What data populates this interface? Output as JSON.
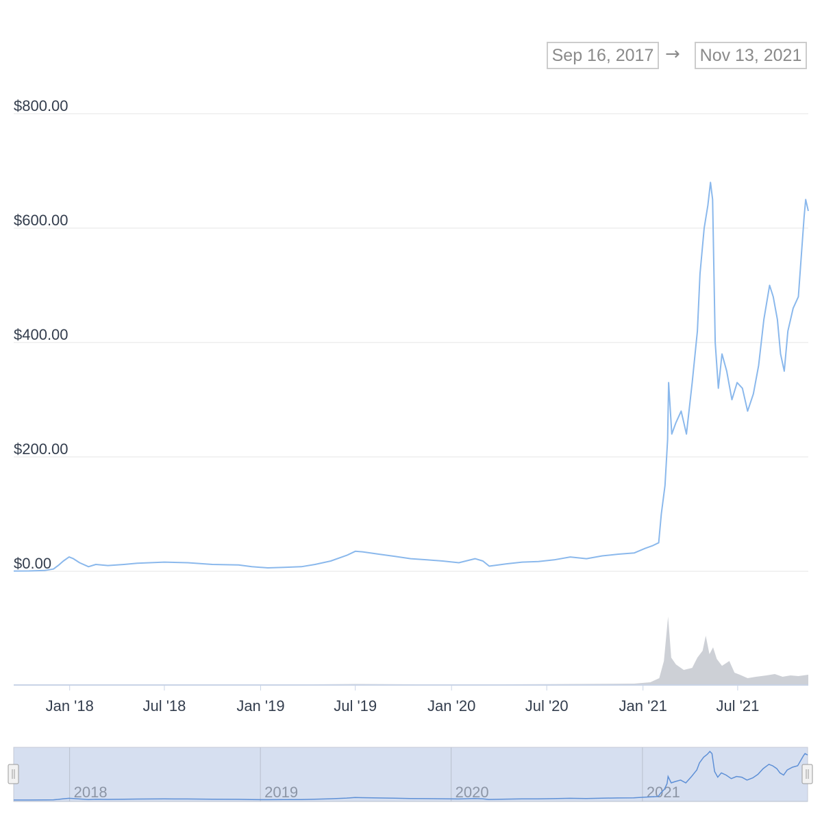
{
  "range_selector": {
    "from": "Sep 16, 2017",
    "arrow": "→",
    "to": "Nov 13, 2021"
  },
  "colors": {
    "price_line": "#8ab8ec",
    "volume": "#cdd0d6",
    "grid": "#e6e6e6",
    "navigator_fill": "#d6dff0",
    "navigator_line": "#5d8fd6"
  },
  "chart_data": {
    "type": "line",
    "title": "",
    "xlabel": "",
    "ylabel": "",
    "ylim": [
      0,
      800
    ],
    "y_ticks": [
      0,
      200,
      400,
      600,
      800
    ],
    "y_tick_labels": [
      "$0.00",
      "$200.00",
      "$400.00",
      "$600.00",
      "$800.00"
    ],
    "xlim": [
      "2017-09-16",
      "2021-11-13"
    ],
    "x_ticks": [
      "2018-01-01",
      "2018-07-01",
      "2019-01-01",
      "2019-07-01",
      "2020-01-01",
      "2020-07-01",
      "2021-01-01",
      "2021-07-01"
    ],
    "x_tick_labels": [
      "Jan '18",
      "Jul '18",
      "Jan '19",
      "Jul '19",
      "Jan '20",
      "Jul '20",
      "Jan '21",
      "Jul '21"
    ],
    "grid": true,
    "series": [
      {
        "values": [
          [
            "2017-09-16",
            0.5
          ],
          [
            "2017-10-15",
            0.6
          ],
          [
            "2017-11-15",
            1.5
          ],
          [
            "2017-12-01",
            4
          ],
          [
            "2017-12-10",
            10
          ],
          [
            "2017-12-20",
            18
          ],
          [
            "2017-12-31",
            25
          ],
          [
            "2018-01-08",
            22
          ],
          [
            "2018-01-20",
            15
          ],
          [
            "2018-02-06",
            8
          ],
          [
            "2018-02-20",
            12
          ],
          [
            "2018-03-15",
            10
          ],
          [
            "2018-04-15",
            12
          ],
          [
            "2018-05-10",
            14
          ],
          [
            "2018-07-01",
            16
          ],
          [
            "2018-08-15",
            15
          ],
          [
            "2018-10-01",
            12
          ],
          [
            "2018-11-20",
            11
          ],
          [
            "2018-12-15",
            8
          ],
          [
            "2019-01-15",
            6
          ],
          [
            "2019-02-15",
            7
          ],
          [
            "2019-03-20",
            8
          ],
          [
            "2019-04-15",
            12
          ],
          [
            "2019-05-15",
            18
          ],
          [
            "2019-06-15",
            28
          ],
          [
            "2019-07-01",
            35
          ],
          [
            "2019-07-15",
            34
          ],
          [
            "2019-08-15",
            30
          ],
          [
            "2019-09-15",
            26
          ],
          [
            "2019-10-15",
            22
          ],
          [
            "2019-11-15",
            20
          ],
          [
            "2019-12-15",
            18
          ],
          [
            "2020-01-15",
            15
          ],
          [
            "2020-02-15",
            22
          ],
          [
            "2020-03-01",
            18
          ],
          [
            "2020-03-13",
            9
          ],
          [
            "2020-04-15",
            13
          ],
          [
            "2020-05-15",
            16
          ],
          [
            "2020-06-15",
            17
          ],
          [
            "2020-07-15",
            20
          ],
          [
            "2020-08-15",
            25
          ],
          [
            "2020-09-15",
            22
          ],
          [
            "2020-10-15",
            27
          ],
          [
            "2020-11-15",
            30
          ],
          [
            "2020-12-15",
            32
          ],
          [
            "2021-01-05",
            40
          ],
          [
            "2021-01-20",
            45
          ],
          [
            "2021-01-31",
            50
          ],
          [
            "2021-02-05",
            100
          ],
          [
            "2021-02-12",
            150
          ],
          [
            "2021-02-17",
            230
          ],
          [
            "2021-02-19",
            330
          ],
          [
            "2021-02-25",
            240
          ],
          [
            "2021-03-05",
            260
          ],
          [
            "2021-03-15",
            280
          ],
          [
            "2021-03-25",
            240
          ],
          [
            "2021-04-05",
            330
          ],
          [
            "2021-04-15",
            420
          ],
          [
            "2021-04-20",
            520
          ],
          [
            "2021-04-28",
            600
          ],
          [
            "2021-05-05",
            640
          ],
          [
            "2021-05-10",
            680
          ],
          [
            "2021-05-14",
            650
          ],
          [
            "2021-05-19",
            400
          ],
          [
            "2021-05-25",
            320
          ],
          [
            "2021-06-01",
            380
          ],
          [
            "2021-06-10",
            350
          ],
          [
            "2021-06-20",
            300
          ],
          [
            "2021-06-30",
            330
          ],
          [
            "2021-07-10",
            320
          ],
          [
            "2021-07-20",
            280
          ],
          [
            "2021-07-31",
            310
          ],
          [
            "2021-08-10",
            360
          ],
          [
            "2021-08-20",
            440
          ],
          [
            "2021-08-31",
            500
          ],
          [
            "2021-09-07",
            480
          ],
          [
            "2021-09-15",
            440
          ],
          [
            "2021-09-21",
            380
          ],
          [
            "2021-09-28",
            350
          ],
          [
            "2021-10-05",
            420
          ],
          [
            "2021-10-15",
            460
          ],
          [
            "2021-10-25",
            480
          ],
          [
            "2021-11-05",
            620
          ],
          [
            "2021-11-08",
            650
          ],
          [
            "2021-11-13",
            630
          ]
        ]
      }
    ],
    "volume": {
      "ylim": [
        0,
        100
      ],
      "values": [
        [
          "2017-09-16",
          0.3
        ],
        [
          "2018-01-01",
          0.8
        ],
        [
          "2018-07-01",
          0.5
        ],
        [
          "2019-01-01",
          0.5
        ],
        [
          "2019-07-01",
          1.5
        ],
        [
          "2020-01-01",
          0.8
        ],
        [
          "2020-07-01",
          1.2
        ],
        [
          "2020-12-15",
          2
        ],
        [
          "2021-01-15",
          4
        ],
        [
          "2021-02-01",
          10
        ],
        [
          "2021-02-10",
          35
        ],
        [
          "2021-02-18",
          100
        ],
        [
          "2021-02-24",
          40
        ],
        [
          "2021-03-05",
          30
        ],
        [
          "2021-03-20",
          22
        ],
        [
          "2021-04-05",
          25
        ],
        [
          "2021-04-15",
          40
        ],
        [
          "2021-04-25",
          50
        ],
        [
          "2021-05-01",
          72
        ],
        [
          "2021-05-08",
          45
        ],
        [
          "2021-05-15",
          55
        ],
        [
          "2021-05-22",
          38
        ],
        [
          "2021-06-01",
          28
        ],
        [
          "2021-06-15",
          35
        ],
        [
          "2021-06-25",
          18
        ],
        [
          "2021-07-05",
          15
        ],
        [
          "2021-07-20",
          10
        ],
        [
          "2021-08-05",
          12
        ],
        [
          "2021-08-25",
          14
        ],
        [
          "2021-09-10",
          16
        ],
        [
          "2021-09-25",
          12
        ],
        [
          "2021-10-10",
          14
        ],
        [
          "2021-10-25",
          13
        ],
        [
          "2021-11-13",
          15
        ]
      ]
    },
    "navigator": {
      "year_labels": [
        "2018",
        "2019",
        "2020",
        "2021"
      ],
      "year_ticks": [
        "2018-01-01",
        "2019-01-01",
        "2020-01-01",
        "2021-01-01"
      ]
    }
  }
}
